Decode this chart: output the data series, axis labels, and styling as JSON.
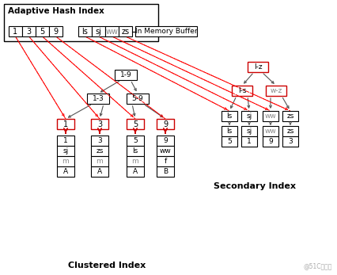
{
  "title": "Adaptive Hash Index",
  "bg_color": "#ffffff",
  "in_memory_label": "In Memory Buffer",
  "clustered_label": "Clustered Index",
  "secondary_label": "Secondary Index",
  "watermark": "@51C和博客",
  "ahi_keys": [
    "1",
    "3",
    "5",
    "9"
  ],
  "ahi_vals": [
    "ls",
    "sj",
    "ww",
    "zs"
  ],
  "clustered_data": [
    [
      "1",
      "sj",
      "m",
      "A"
    ],
    [
      "3",
      "zs",
      "m",
      "A"
    ],
    [
      "5",
      "ls",
      "m",
      "A"
    ],
    [
      "9",
      "ww",
      "f",
      "B"
    ]
  ],
  "clustered_gray_rows": [
    2,
    2,
    2,
    -1
  ],
  "secondary_data": [
    [
      "ls",
      "5"
    ],
    [
      "sj",
      "1"
    ],
    [
      "ww",
      "9"
    ],
    [
      "zs",
      "3"
    ]
  ],
  "secondary_gray_col": [
    0,
    0,
    0,
    0
  ]
}
